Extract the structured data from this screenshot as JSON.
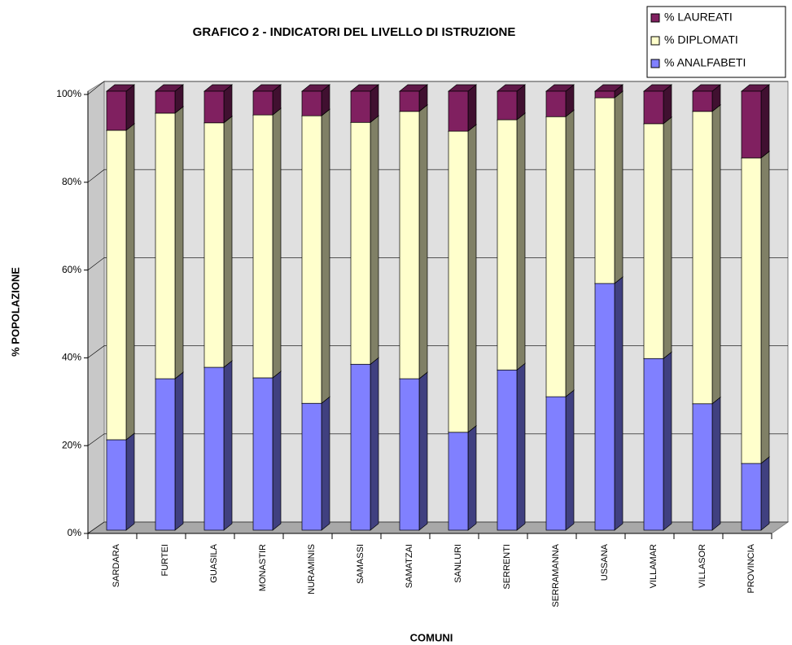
{
  "chart_data": {
    "type": "stacked_bar_3d",
    "title": "GRAFICO 2 - INDICATORI DEL LIVELLO DI ISTRUZIONE",
    "x_label": "COMUNI",
    "y_label": "% POPOLAZIONE",
    "categories": [
      "SARDARA",
      "FURTEI",
      "GUASILA",
      "MONASTIR",
      "NURAMINIS",
      "SAMASSI",
      "SAMATZAI",
      "SANLURI",
      "SERRENTI",
      "SERRAMANNA",
      "USSANA",
      "VILLAMAR",
      "VILLASOR",
      "PROVINCIA"
    ],
    "series": [
      {
        "name": "% ANALFABETI",
        "color": "#8080ff",
        "values": [
          20.6,
          34.5,
          37.1,
          34.7,
          28.9,
          37.8,
          34.5,
          22.3,
          36.5,
          30.4,
          56.2,
          39.1,
          28.8,
          15.2
        ]
      },
      {
        "name": "% DIPLOMATI",
        "color": "#ffffcc",
        "values": [
          70.5,
          60.5,
          55.7,
          59.9,
          65.5,
          55.1,
          60.9,
          68.6,
          57.0,
          63.8,
          42.3,
          53.5,
          66.6,
          69.6
        ]
      },
      {
        "name": "% LAUREATI",
        "color": "#802060",
        "values": [
          8.9,
          5.0,
          7.2,
          5.4,
          5.6,
          7.1,
          4.6,
          9.1,
          6.5,
          5.8,
          1.5,
          7.4,
          4.6,
          15.2
        ]
      }
    ],
    "ylim": [
      0,
      100
    ],
    "yticks": [
      {
        "value": 0,
        "label": "0%"
      },
      {
        "value": 20,
        "label": "20%"
      },
      {
        "value": 40,
        "label": "40%"
      },
      {
        "value": 60,
        "label": "60%"
      },
      {
        "value": 80,
        "label": "80%"
      },
      {
        "value": 100,
        "label": "100%"
      }
    ],
    "grid": true,
    "legend": "top-right"
  }
}
